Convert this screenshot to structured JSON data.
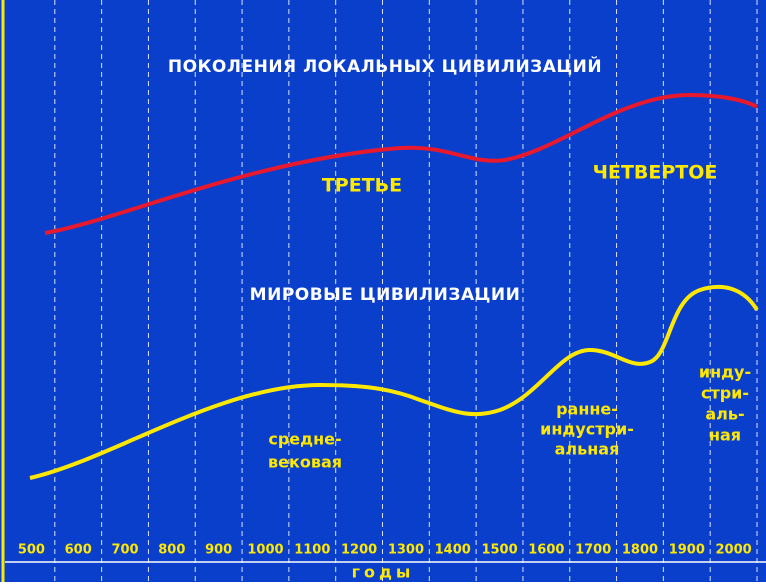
{
  "title": "ПОКОЛЕНИЯ ЛОКАЛЬНЫХ ЦИВИЛИЗАЦИЙ",
  "upper_labels": [
    "ТРЕТЬЕ",
    "ЧЕТВЕРТОЕ"
  ],
  "subtitle": "МИРОВЫЕ ЦИВИЛИЗАЦИИ",
  "lower_labels": [
    [
      "средне-",
      "вековая"
    ],
    [
      "ранне-",
      "индустри-",
      "альная"
    ],
    [
      "инду-",
      "стри-",
      "аль-",
      "ная"
    ]
  ],
  "x_ticks": [
    "500",
    "600",
    "700",
    "800",
    "900",
    "1000",
    "1100",
    "1200",
    "1300",
    "1400",
    "1500",
    "1600",
    "1700",
    "1800",
    "1900",
    "2000"
  ],
  "x_label": "годы"
}
